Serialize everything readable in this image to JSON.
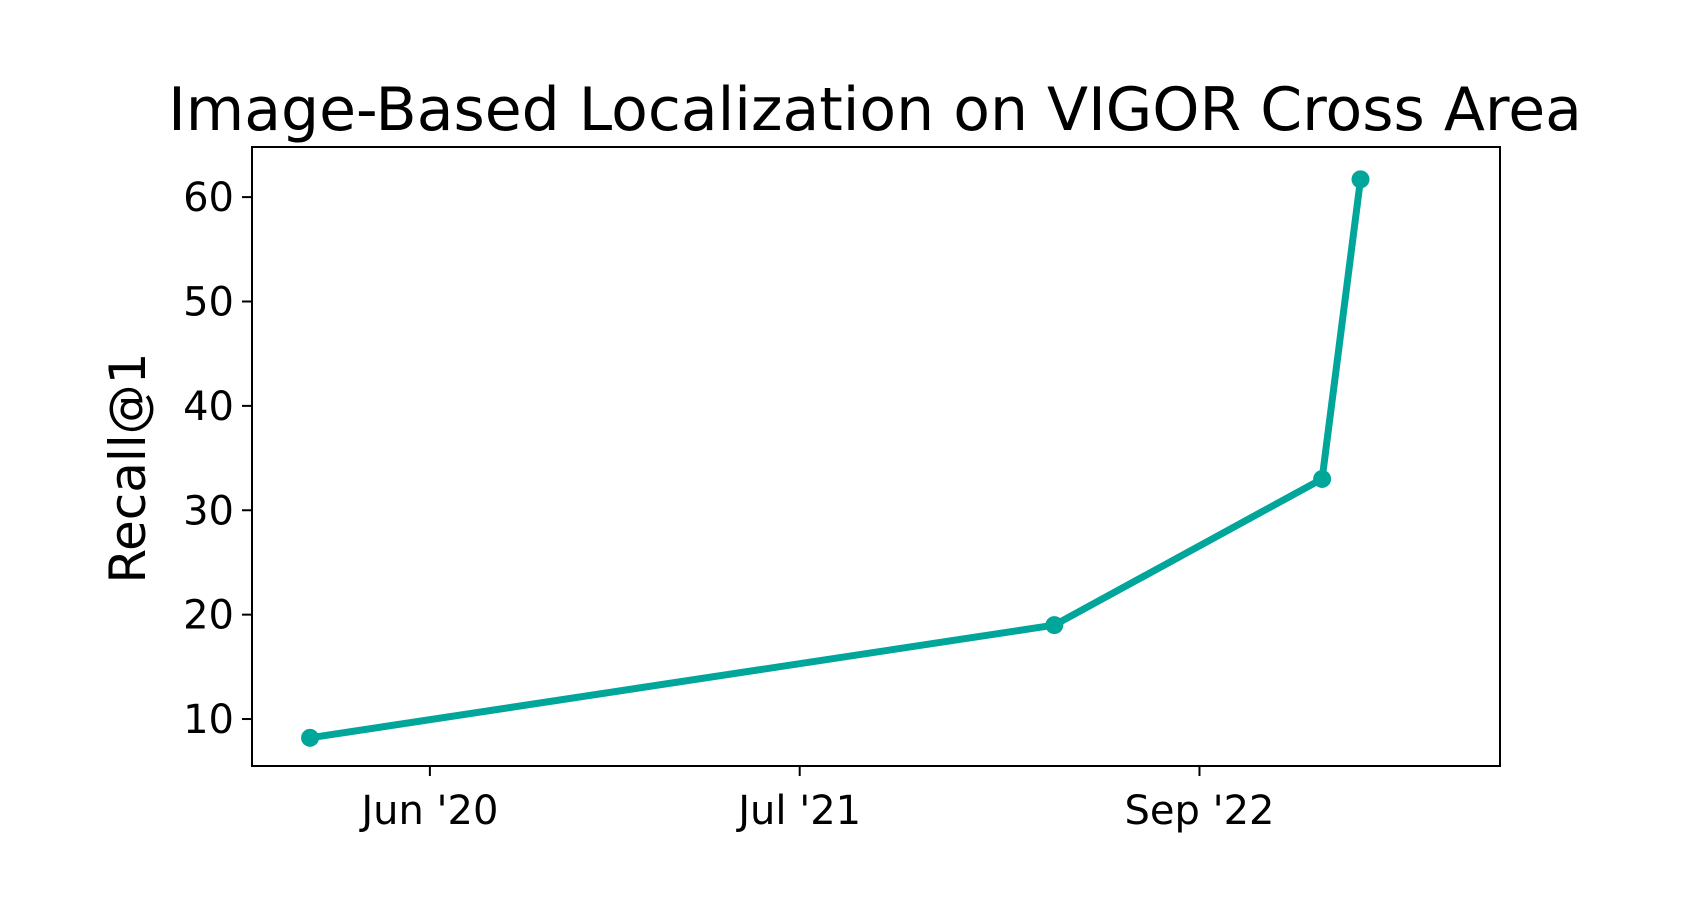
{
  "chart_data": {
    "type": "line",
    "title": "Image-Based Localization on VIGOR Cross Area",
    "xlabel": "",
    "ylabel": "Recall@1",
    "x_ticks": [
      {
        "date": "2020-06-01",
        "label": "Jun '20"
      },
      {
        "date": "2021-07-01",
        "label": "Jul '21"
      },
      {
        "date": "2022-09-01",
        "label": "Sep '22"
      }
    ],
    "y_ticks": [
      10,
      20,
      30,
      40,
      50,
      60
    ],
    "xlim": [
      "2019-11-24",
      "2023-07-19"
    ],
    "ylim": [
      5.5,
      64.8
    ],
    "grid": false,
    "line_color": "#00a699",
    "series": [
      {
        "points": [
          {
            "date": "2020-01-25",
            "value": 8.2
          },
          {
            "date": "2022-03-30",
            "value": 19.0
          },
          {
            "date": "2023-01-10",
            "value": 33.0
          },
          {
            "date": "2023-02-20",
            "value": 61.7
          }
        ]
      }
    ]
  }
}
